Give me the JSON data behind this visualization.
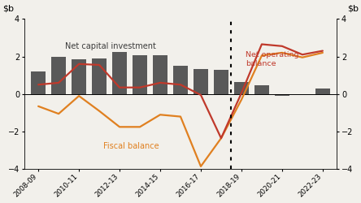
{
  "x_labels": [
    "2008-09",
    "2010-11",
    "2012-13",
    "2014-15",
    "2016-17",
    "2018-19",
    "2020-21",
    "2022-23"
  ],
  "x_tick_positions": [
    0,
    2,
    4,
    6,
    8,
    10,
    12,
    14
  ],
  "bar_x": [
    0,
    1,
    2,
    3,
    4,
    5,
    6,
    7,
    8,
    9,
    10,
    11,
    12,
    13,
    14
  ],
  "bar_values": [
    1.2,
    2.0,
    1.85,
    1.9,
    2.25,
    2.05,
    2.05,
    1.5,
    1.35,
    1.3,
    0.65,
    0.45,
    -0.1,
    0.0,
    0.3
  ],
  "net_op_x": [
    0,
    1,
    2,
    3,
    4,
    5,
    6,
    7,
    8,
    9,
    10,
    11,
    12,
    13,
    14
  ],
  "net_op_y": [
    0.5,
    0.6,
    1.6,
    1.55,
    0.35,
    0.35,
    0.6,
    0.5,
    -0.05,
    -2.35,
    0.05,
    2.65,
    2.55,
    2.1,
    2.3
  ],
  "fiscal_x": [
    0,
    1,
    2,
    3,
    4,
    5,
    6,
    7,
    8,
    9,
    10,
    11,
    12,
    13,
    14
  ],
  "fiscal_y": [
    -0.65,
    -1.05,
    -0.1,
    -0.9,
    -1.75,
    -1.75,
    -1.1,
    -1.2,
    -3.85,
    -2.35,
    -0.3,
    2.05,
    2.2,
    1.95,
    2.2
  ],
  "dotted_x": 9.5,
  "bar_color": "#595959",
  "net_op_color": "#C0392B",
  "fiscal_color": "#E08020",
  "ylim": [
    -4,
    4
  ],
  "yticks": [
    -4,
    -2,
    0,
    2,
    4
  ],
  "net_op_label": "Net operating\nbalance",
  "fiscal_label": "Fiscal balance",
  "bar_label": "Net capital investment",
  "bg_color": "#f2f0eb"
}
